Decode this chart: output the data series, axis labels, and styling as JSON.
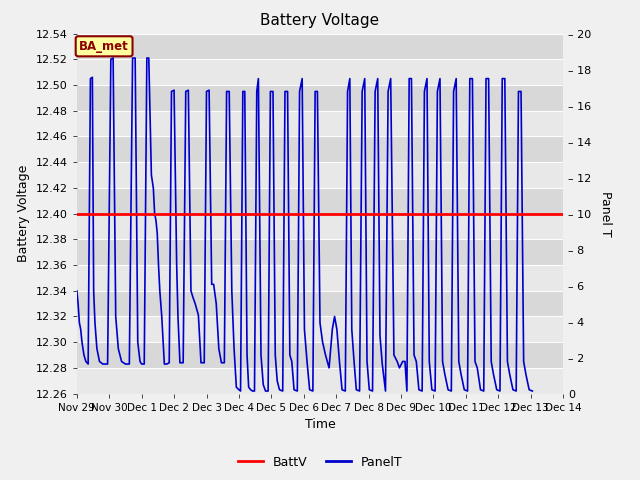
{
  "title": "Battery Voltage",
  "ylabel_left": "Battery Voltage",
  "ylabel_right": "Panel T",
  "xlabel": "Time",
  "ylim_left": [
    12.26,
    12.54
  ],
  "ylim_right": [
    0,
    20
  ],
  "xlim": [
    0,
    15
  ],
  "battv_value": 12.4,
  "battv_color": "#ff0000",
  "panelt_color": "#0000cc",
  "fig_bg": "#f0f0f0",
  "plot_bg": "#e8e8e8",
  "band_colors": [
    "#e4e4e4",
    "#d8d8d8"
  ],
  "legend_labels": [
    "BattV",
    "PanelT"
  ],
  "annotation_text": "BA_met",
  "annotation_bg": "#ffffa0",
  "annotation_border": "#8b0000",
  "tick_labels": [
    "Nov 29",
    "Nov 30",
    "Dec 1",
    "Dec 2",
    "Dec 3",
    "Dec 4",
    "Dec 5",
    "Dec 6",
    "Dec 7",
    "Dec 8",
    "Dec 9",
    "Dec 10",
    "Dec 11",
    "Dec 12",
    "Dec 13",
    "Dec 14"
  ],
  "left_yticks": [
    12.26,
    12.28,
    12.3,
    12.32,
    12.34,
    12.36,
    12.38,
    12.4,
    12.42,
    12.44,
    12.46,
    12.48,
    12.5,
    12.52,
    12.54
  ],
  "right_yticks": [
    0,
    2,
    4,
    6,
    8,
    10,
    12,
    14,
    16,
    18,
    20
  ],
  "voltage_signal": [
    [
      0.0,
      12.34
    ],
    [
      0.04,
      12.33
    ],
    [
      0.08,
      12.315
    ],
    [
      0.12,
      12.31
    ],
    [
      0.16,
      12.3
    ],
    [
      0.22,
      12.29
    ],
    [
      0.28,
      12.285
    ],
    [
      0.35,
      12.283
    ],
    [
      0.42,
      12.505
    ],
    [
      0.48,
      12.506
    ],
    [
      0.52,
      12.34
    ],
    [
      0.56,
      12.315
    ],
    [
      0.62,
      12.295
    ],
    [
      0.7,
      12.285
    ],
    [
      0.8,
      12.283
    ],
    [
      0.88,
      12.283
    ],
    [
      0.95,
      12.283
    ],
    [
      1.05,
      12.52
    ],
    [
      1.12,
      12.521
    ],
    [
      1.2,
      12.32
    ],
    [
      1.28,
      12.295
    ],
    [
      1.38,
      12.285
    ],
    [
      1.5,
      12.283
    ],
    [
      1.62,
      12.283
    ],
    [
      1.72,
      12.521
    ],
    [
      1.8,
      12.521
    ],
    [
      1.88,
      12.3
    ],
    [
      1.95,
      12.285
    ],
    [
      2.0,
      12.283
    ],
    [
      2.08,
      12.283
    ],
    [
      2.16,
      12.521
    ],
    [
      2.22,
      12.521
    ],
    [
      2.3,
      12.43
    ],
    [
      2.36,
      12.42
    ],
    [
      2.4,
      12.4
    ],
    [
      2.44,
      12.395
    ],
    [
      2.48,
      12.385
    ],
    [
      2.52,
      12.36
    ],
    [
      2.56,
      12.34
    ],
    [
      2.62,
      12.32
    ],
    [
      2.7,
      12.283
    ],
    [
      2.78,
      12.283
    ],
    [
      2.85,
      12.284
    ],
    [
      2.92,
      12.495
    ],
    [
      3.0,
      12.496
    ],
    [
      3.08,
      12.36
    ],
    [
      3.12,
      12.32
    ],
    [
      3.18,
      12.284
    ],
    [
      3.28,
      12.284
    ],
    [
      3.36,
      12.495
    ],
    [
      3.44,
      12.496
    ],
    [
      3.52,
      12.34
    ],
    [
      3.58,
      12.335
    ],
    [
      3.65,
      12.33
    ],
    [
      3.75,
      12.321
    ],
    [
      3.83,
      12.284
    ],
    [
      3.93,
      12.284
    ],
    [
      4.0,
      12.495
    ],
    [
      4.08,
      12.496
    ],
    [
      4.16,
      12.345
    ],
    [
      4.22,
      12.345
    ],
    [
      4.3,
      12.33
    ],
    [
      4.38,
      12.295
    ],
    [
      4.46,
      12.284
    ],
    [
      4.55,
      12.284
    ],
    [
      4.62,
      12.495
    ],
    [
      4.7,
      12.495
    ],
    [
      4.78,
      12.34
    ],
    [
      4.85,
      12.295
    ],
    [
      4.92,
      12.265
    ],
    [
      5.0,
      12.263
    ],
    [
      5.05,
      12.262
    ],
    [
      5.12,
      12.495
    ],
    [
      5.18,
      12.495
    ],
    [
      5.25,
      12.29
    ],
    [
      5.3,
      12.265
    ],
    [
      5.36,
      12.263
    ],
    [
      5.42,
      12.262
    ],
    [
      5.48,
      12.262
    ],
    [
      5.55,
      12.495
    ],
    [
      5.6,
      12.505
    ],
    [
      5.68,
      12.29
    ],
    [
      5.75,
      12.267
    ],
    [
      5.82,
      12.262
    ],
    [
      5.9,
      12.262
    ],
    [
      5.97,
      12.495
    ],
    [
      6.05,
      12.495
    ],
    [
      6.12,
      12.29
    ],
    [
      6.18,
      12.27
    ],
    [
      6.25,
      12.263
    ],
    [
      6.35,
      12.262
    ],
    [
      6.42,
      12.495
    ],
    [
      6.5,
      12.495
    ],
    [
      6.57,
      12.29
    ],
    [
      6.63,
      12.285
    ],
    [
      6.7,
      12.263
    ],
    [
      6.8,
      12.262
    ],
    [
      6.87,
      12.495
    ],
    [
      6.95,
      12.505
    ],
    [
      7.02,
      12.31
    ],
    [
      7.1,
      12.285
    ],
    [
      7.18,
      12.263
    ],
    [
      7.28,
      12.262
    ],
    [
      7.35,
      12.495
    ],
    [
      7.42,
      12.495
    ],
    [
      7.5,
      12.315
    ],
    [
      7.58,
      12.3
    ],
    [
      7.67,
      12.29
    ],
    [
      7.78,
      12.28
    ],
    [
      7.88,
      12.31
    ],
    [
      7.95,
      12.32
    ],
    [
      8.02,
      12.31
    ],
    [
      8.1,
      12.285
    ],
    [
      8.18,
      12.263
    ],
    [
      8.28,
      12.262
    ],
    [
      8.35,
      12.495
    ],
    [
      8.42,
      12.505
    ],
    [
      8.48,
      12.31
    ],
    [
      8.55,
      12.285
    ],
    [
      8.62,
      12.263
    ],
    [
      8.72,
      12.262
    ],
    [
      8.8,
      12.495
    ],
    [
      8.88,
      12.505
    ],
    [
      8.95,
      12.285
    ],
    [
      9.02,
      12.263
    ],
    [
      9.12,
      12.262
    ],
    [
      9.2,
      12.495
    ],
    [
      9.28,
      12.505
    ],
    [
      9.35,
      12.305
    ],
    [
      9.42,
      12.283
    ],
    [
      9.52,
      12.262
    ],
    [
      9.6,
      12.495
    ],
    [
      9.68,
      12.505
    ],
    [
      9.78,
      12.29
    ],
    [
      9.88,
      12.285
    ],
    [
      9.95,
      12.28
    ],
    [
      10.05,
      12.285
    ],
    [
      10.12,
      12.285
    ],
    [
      10.18,
      12.262
    ],
    [
      10.25,
      12.505
    ],
    [
      10.32,
      12.505
    ],
    [
      10.4,
      12.29
    ],
    [
      10.47,
      12.285
    ],
    [
      10.55,
      12.263
    ],
    [
      10.65,
      12.262
    ],
    [
      10.72,
      12.495
    ],
    [
      10.8,
      12.505
    ],
    [
      10.87,
      12.285
    ],
    [
      10.95,
      12.263
    ],
    [
      11.05,
      12.262
    ],
    [
      11.12,
      12.495
    ],
    [
      11.2,
      12.505
    ],
    [
      11.28,
      12.285
    ],
    [
      11.35,
      12.275
    ],
    [
      11.45,
      12.263
    ],
    [
      11.55,
      12.262
    ],
    [
      11.62,
      12.495
    ],
    [
      11.7,
      12.505
    ],
    [
      11.78,
      12.285
    ],
    [
      11.85,
      12.275
    ],
    [
      11.95,
      12.263
    ],
    [
      12.05,
      12.262
    ],
    [
      12.12,
      12.505
    ],
    [
      12.2,
      12.505
    ],
    [
      12.28,
      12.285
    ],
    [
      12.35,
      12.28
    ],
    [
      12.45,
      12.263
    ],
    [
      12.55,
      12.262
    ],
    [
      12.62,
      12.505
    ],
    [
      12.7,
      12.505
    ],
    [
      12.78,
      12.285
    ],
    [
      12.85,
      12.275
    ],
    [
      12.95,
      12.263
    ],
    [
      13.05,
      12.262
    ],
    [
      13.12,
      12.505
    ],
    [
      13.2,
      12.505
    ],
    [
      13.28,
      12.285
    ],
    [
      13.35,
      12.275
    ],
    [
      13.45,
      12.263
    ],
    [
      13.55,
      12.262
    ],
    [
      13.62,
      12.495
    ],
    [
      13.7,
      12.495
    ],
    [
      13.78,
      12.285
    ],
    [
      13.85,
      12.275
    ],
    [
      13.95,
      12.263
    ],
    [
      14.05,
      12.262
    ]
  ]
}
